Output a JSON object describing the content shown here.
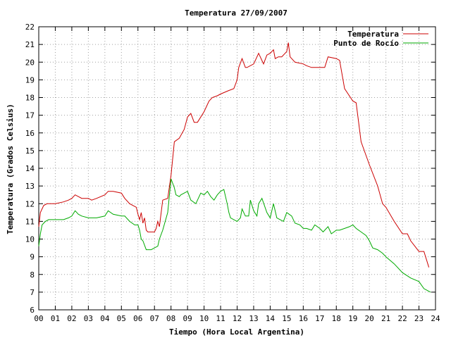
{
  "chart_data": {
    "type": "line",
    "title": "Temperatura 27/09/2007",
    "xlabel": "Tiempo (Hora Local Argentina)",
    "ylabel": "Temperatura (Grados Celsius)",
    "xlim": [
      0,
      24
    ],
    "ylim": [
      6,
      22
    ],
    "grid": true,
    "legend_position": "top-right",
    "x_ticks": [
      "00",
      "01",
      "02",
      "03",
      "04",
      "05",
      "06",
      "07",
      "08",
      "09",
      "10",
      "11",
      "12",
      "13",
      "14",
      "15",
      "16",
      "17",
      "18",
      "19",
      "20",
      "21",
      "22",
      "23",
      "24"
    ],
    "y_ticks": [
      6,
      7,
      8,
      9,
      10,
      11,
      12,
      13,
      14,
      15,
      16,
      17,
      18,
      19,
      20,
      21,
      22
    ],
    "series": [
      {
        "name": "Temperatura",
        "color": "#cc0000",
        "x": [
          0.0,
          0.1,
          0.3,
          0.5,
          1.0,
          1.5,
          1.8,
          2.0,
          2.2,
          2.4,
          2.6,
          3.0,
          3.2,
          3.5,
          4.0,
          4.2,
          4.5,
          5.0,
          5.2,
          5.5,
          5.9,
          6.0,
          6.1,
          6.2,
          6.3,
          6.4,
          6.5,
          6.6,
          6.8,
          7.0,
          7.1,
          7.2,
          7.3,
          7.5,
          7.8,
          8.0,
          8.2,
          8.5,
          8.8,
          9.0,
          9.2,
          9.4,
          9.6,
          10.0,
          10.3,
          10.5,
          10.8,
          11.0,
          11.5,
          11.8,
          12.0,
          12.1,
          12.3,
          12.5,
          12.6,
          13.0,
          13.3,
          13.6,
          13.8,
          14.0,
          14.2,
          14.3,
          14.5,
          14.7,
          15.0,
          15.1,
          15.2,
          15.3,
          15.5,
          16.0,
          16.2,
          16.5,
          17.0,
          17.3,
          17.5,
          18.0,
          18.2,
          18.5,
          19.0,
          19.2,
          19.5,
          20.0,
          20.5,
          20.8,
          21.0,
          21.5,
          22.0,
          22.3,
          22.5,
          23.0,
          23.3,
          23.6
        ],
        "values": [
          10.7,
          11.5,
          11.9,
          12.0,
          12.0,
          12.1,
          12.2,
          12.3,
          12.5,
          12.4,
          12.3,
          12.3,
          12.2,
          12.3,
          12.5,
          12.7,
          12.7,
          12.6,
          12.3,
          12.0,
          11.8,
          11.4,
          11.1,
          11.5,
          10.9,
          11.2,
          10.5,
          10.4,
          10.4,
          10.4,
          10.6,
          11.0,
          10.7,
          12.2,
          12.3,
          13.6,
          15.5,
          15.7,
          16.2,
          16.9,
          17.1,
          16.6,
          16.6,
          17.2,
          17.8,
          18.0,
          18.1,
          18.2,
          18.4,
          18.5,
          19.0,
          19.7,
          20.2,
          19.7,
          19.7,
          19.9,
          20.5,
          19.9,
          20.4,
          20.5,
          20.7,
          20.2,
          20.3,
          20.3,
          20.6,
          21.1,
          20.3,
          20.2,
          20.0,
          19.9,
          19.8,
          19.7,
          19.7,
          19.7,
          20.3,
          20.2,
          20.1,
          18.5,
          17.8,
          17.7,
          15.5,
          14.2,
          13.0,
          12.0,
          11.8,
          11.0,
          10.3,
          10.3,
          9.9,
          9.3,
          9.3,
          8.4
        ]
      },
      {
        "name": "Punto de Rocío",
        "color": "#00aa00",
        "x": [
          0.0,
          0.1,
          0.2,
          0.4,
          0.6,
          1.0,
          1.5,
          1.8,
          2.0,
          2.2,
          2.4,
          2.6,
          3.0,
          3.2,
          3.5,
          4.0,
          4.2,
          4.5,
          5.0,
          5.2,
          5.5,
          5.8,
          6.0,
          6.1,
          6.2,
          6.3,
          6.5,
          6.8,
          7.0,
          7.2,
          7.3,
          7.5,
          7.8,
          8.0,
          8.2,
          8.3,
          8.5,
          8.6,
          8.8,
          9.0,
          9.2,
          9.5,
          9.8,
          10.0,
          10.2,
          10.4,
          10.6,
          10.8,
          11.0,
          11.2,
          11.4,
          11.5,
          11.6,
          11.8,
          12.0,
          12.2,
          12.3,
          12.5,
          12.7,
          12.8,
          13.0,
          13.2,
          13.3,
          13.5,
          13.8,
          14.0,
          14.2,
          14.4,
          14.6,
          14.8,
          15.0,
          15.3,
          15.5,
          15.8,
          16.0,
          16.2,
          16.5,
          16.7,
          17.0,
          17.2,
          17.5,
          17.7,
          18.0,
          18.2,
          18.5,
          18.8,
          19.0,
          19.2,
          19.5,
          19.8,
          20.0,
          20.2,
          20.5,
          20.8,
          21.0,
          21.5,
          22.0,
          22.5,
          23.0,
          23.3,
          23.5,
          23.7
        ],
        "values": [
          9.6,
          10.3,
          10.8,
          11.0,
          11.1,
          11.1,
          11.1,
          11.2,
          11.3,
          11.6,
          11.4,
          11.3,
          11.2,
          11.2,
          11.2,
          11.3,
          11.6,
          11.4,
          11.3,
          11.3,
          11.0,
          10.8,
          10.8,
          10.5,
          10.0,
          9.9,
          9.4,
          9.4,
          9.5,
          9.6,
          10.0,
          10.5,
          11.5,
          13.4,
          12.9,
          12.5,
          12.4,
          12.5,
          12.6,
          12.7,
          12.2,
          12.0,
          12.6,
          12.5,
          12.7,
          12.4,
          12.2,
          12.5,
          12.7,
          12.8,
          12.0,
          11.5,
          11.2,
          11.1,
          11.0,
          11.2,
          11.7,
          11.3,
          11.3,
          12.2,
          11.6,
          11.3,
          12.0,
          12.3,
          11.5,
          11.2,
          12.0,
          11.2,
          11.1,
          11.0,
          11.5,
          11.3,
          10.9,
          10.8,
          10.6,
          10.6,
          10.5,
          10.8,
          10.6,
          10.4,
          10.7,
          10.3,
          10.5,
          10.5,
          10.6,
          10.7,
          10.8,
          10.6,
          10.4,
          10.2,
          9.9,
          9.5,
          9.4,
          9.2,
          9.0,
          8.6,
          8.1,
          7.8,
          7.6,
          7.2,
          7.1,
          7.0
        ]
      }
    ]
  }
}
